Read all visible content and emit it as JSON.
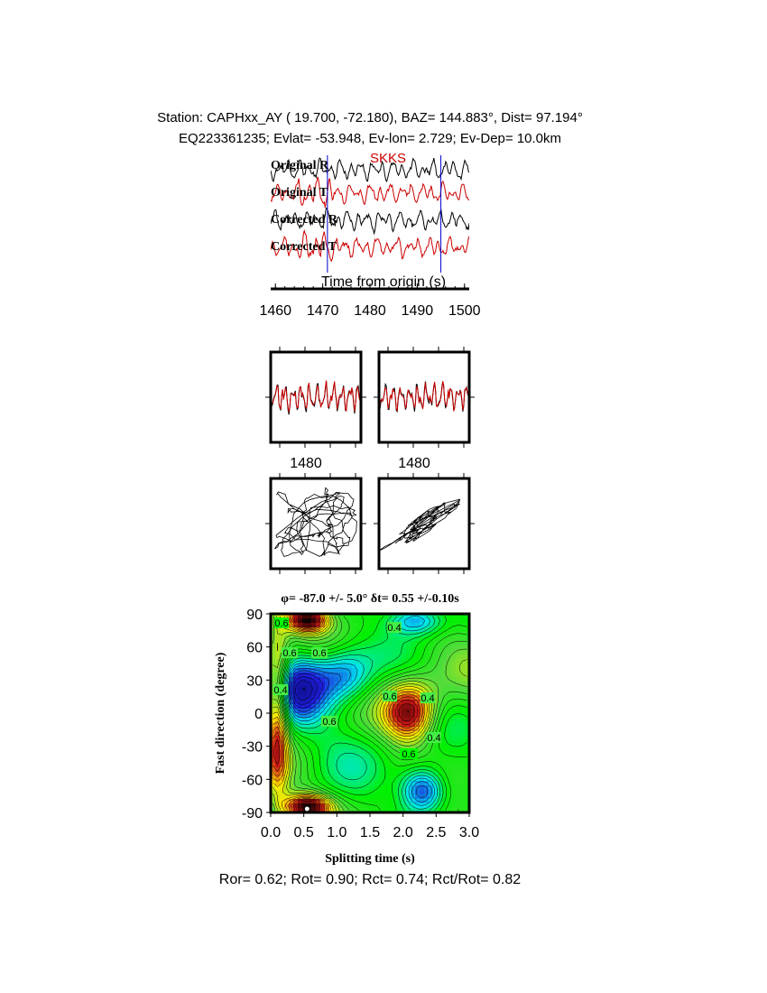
{
  "header": {
    "line1": "Station: CAPHxx_AY (  19.700,  -72.180), BAZ=  144.883°, Dist=   97.194°",
    "line2": "EQ223361235; Evlat= -53.948, Ev-lon=   2.729; Ev-Dep= 10.0km"
  },
  "traces": {
    "labels": [
      "Original R",
      "Original T",
      "Corrected R",
      "Corrected T"
    ],
    "phase_label": "SKKS",
    "xlabel": "Time from origin (s)",
    "xticks": [
      "1460",
      "1470",
      "1480",
      "1490",
      "1500"
    ],
    "colors": {
      "radial": "#000000",
      "transverse": "#cc0000",
      "marker": "#0000cc"
    }
  },
  "window_panels": {
    "xtick": "1480"
  },
  "grid_search": {
    "title_phi": "φ= -87.0 +/- 5.0°",
    "title_dt": "δt= 0.55 +/-0.10s",
    "xlabel": "Splitting time (s)",
    "ylabel": "Fast direction (degree)",
    "xticks": [
      "0.0",
      "0.5",
      "1.0",
      "1.5",
      "2.0",
      "2.5",
      "3.0"
    ],
    "yticks": [
      "90",
      "60",
      "30",
      "0",
      "-30",
      "-60",
      "-90"
    ],
    "contour_labels": [
      "0.6",
      "0.6",
      "0.6",
      "0.4",
      "0.4",
      "0.6",
      "0.6",
      "0.4",
      "0.6",
      "0.4"
    ]
  },
  "stats": "Ror= 0.62; Rot= 0.90; Rct= 0.74; Rct/Rot= 0.82",
  "chart_data": [
    {
      "type": "line",
      "title": "",
      "xlabel": "Time from origin (s)",
      "xlim": [
        1459,
        1501
      ],
      "series": [
        {
          "name": "Original R",
          "values": []
        },
        {
          "name": "Original T",
          "values": []
        },
        {
          "name": "Corrected R",
          "values": []
        },
        {
          "name": "Corrected T",
          "values": []
        }
      ],
      "phase": "SKKS",
      "window_markers": [
        1471,
        1495
      ]
    },
    {
      "type": "heatmap",
      "title": "φ= -87.0 +/- 5.0° δt= 0.55 +/-0.10s",
      "xlabel": "Splitting time (s)",
      "ylabel": "Fast direction (degree)",
      "xlim": [
        0,
        3
      ],
      "ylim": [
        -90,
        90
      ],
      "best_fit": {
        "dt": 0.55,
        "phi": -87.0,
        "dt_err": 0.1,
        "phi_err": 5.0
      }
    }
  ]
}
